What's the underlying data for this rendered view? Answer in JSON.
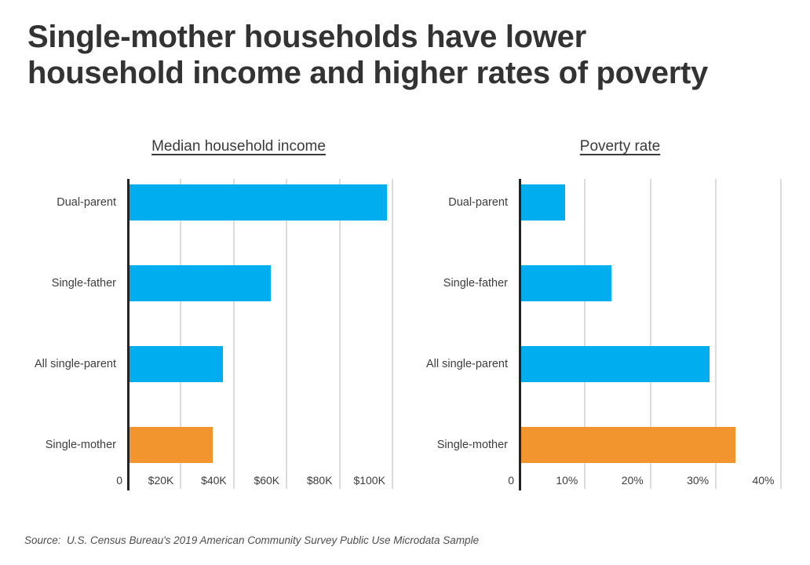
{
  "page_title": "Single-mother households have lower\nhousehold income and higher rates of poverty",
  "source_note": "Source:  U.S. Census Bureau's 2019 American Community Survey Public Use Microdata Sample",
  "colors": {
    "bar_blue": "#00ADEE",
    "bar_orange": "#F2952F",
    "axis_line": "#232323",
    "gridline": "#DCDCDC",
    "title_text": "#333333",
    "label_text": "#3D3D3D",
    "source_text": "#4D4D4D"
  },
  "chart_data": [
    {
      "type": "bar",
      "orientation": "horizontal",
      "title": "Median household income",
      "categories": [
        "Dual-parent",
        "Single-father",
        "All single-parent",
        "Single-mother"
      ],
      "values": [
        98000,
        54000,
        36000,
        32000
      ],
      "value_labels": [
        "$98K",
        "$54K",
        "$36K",
        "$32K"
      ],
      "bar_colors": [
        "#00ADEE",
        "#00ADEE",
        "#00ADEE",
        "#F2952F"
      ],
      "xlim": [
        0,
        101500
      ],
      "ticks": [
        {
          "v": 0,
          "label": "0"
        },
        {
          "v": 20000,
          "label": "$20K"
        },
        {
          "v": 40000,
          "label": "$40K"
        },
        {
          "v": 60000,
          "label": "$60K"
        },
        {
          "v": 80000,
          "label": "$80K"
        },
        {
          "v": 100000,
          "label": "$100K"
        }
      ],
      "grid": "vertical",
      "legend": "none"
    },
    {
      "type": "bar",
      "orientation": "horizontal",
      "title": "Poverty rate",
      "categories": [
        "Dual-parent",
        "Single-father",
        "All single-parent",
        "Single-mother"
      ],
      "values": [
        7,
        14,
        29,
        33
      ],
      "value_labels": [
        "7%",
        "14%",
        "29%",
        "33%"
      ],
      "bar_colors": [
        "#00ADEE",
        "#00ADEE",
        "#00ADEE",
        "#F2952F"
      ],
      "xlim": [
        0,
        40.3
      ],
      "ticks": [
        {
          "v": 0,
          "label": "0"
        },
        {
          "v": 10,
          "label": "10%"
        },
        {
          "v": 20,
          "label": "20%"
        },
        {
          "v": 30,
          "label": "30%"
        },
        {
          "v": 40,
          "label": "40%"
        }
      ],
      "grid": "vertical",
      "legend": "none"
    }
  ]
}
